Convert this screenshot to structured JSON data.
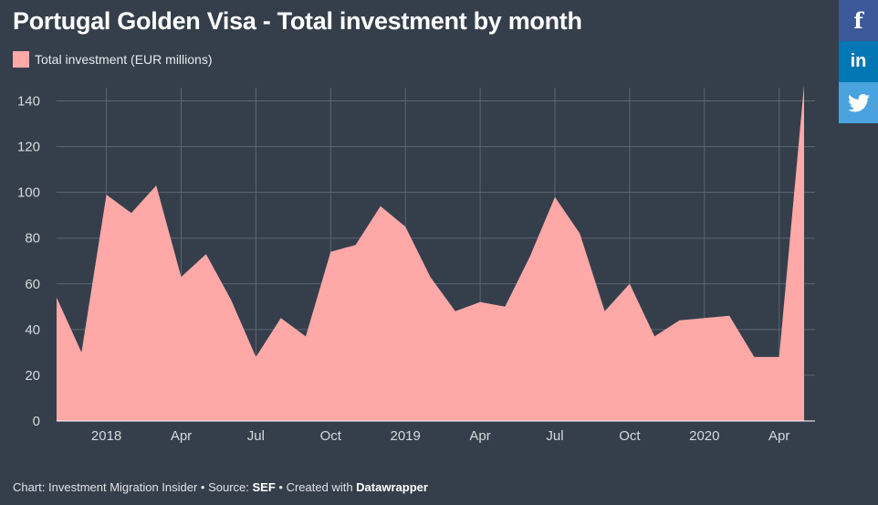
{
  "title": "Portugal Golden Visa - Total investment by month",
  "legend": {
    "label": "Total investment (EUR millions)",
    "color": "#ffa8a8"
  },
  "social": {
    "facebook": "f",
    "linkedin": "in"
  },
  "footer": {
    "prefix": "Chart: Investment Migration Insider • Source: ",
    "source": "SEF",
    "middle": " • Created with ",
    "tool": "Datawrapper"
  },
  "colors": {
    "background": "#343f4b",
    "area": "#ffa8a8",
    "grid": "#5b6672",
    "text": "#d5dade"
  },
  "chart_data": {
    "type": "area",
    "x": [
      "2017-11",
      "2017-12",
      "2018-01",
      "2018-02",
      "2018-03",
      "2018-04",
      "2018-05",
      "2018-06",
      "2018-07",
      "2018-08",
      "2018-09",
      "2018-10",
      "2018-11",
      "2018-12",
      "2019-01",
      "2019-02",
      "2019-03",
      "2019-04",
      "2019-05",
      "2019-06",
      "2019-07",
      "2019-08",
      "2019-09",
      "2019-10",
      "2019-11",
      "2019-12",
      "2020-01",
      "2020-02",
      "2020-03",
      "2020-04",
      "2020-05"
    ],
    "values": [
      54,
      30,
      99,
      91,
      103,
      63,
      73,
      53,
      28,
      45,
      37,
      74,
      77,
      94,
      85,
      63,
      48,
      52,
      50,
      72,
      98,
      82,
      48,
      60,
      37,
      44,
      45,
      46,
      28,
      28,
      147
    ],
    "ylim": [
      0,
      145
    ],
    "yticks": [
      0,
      20,
      40,
      60,
      80,
      100,
      120,
      140
    ],
    "xticks": [
      {
        "month": "2018-01",
        "label": "2018"
      },
      {
        "month": "2018-04",
        "label": "Apr"
      },
      {
        "month": "2018-07",
        "label": "Jul"
      },
      {
        "month": "2018-10",
        "label": "Oct"
      },
      {
        "month": "2019-01",
        "label": "2019"
      },
      {
        "month": "2019-04",
        "label": "Apr"
      },
      {
        "month": "2019-07",
        "label": "Jul"
      },
      {
        "month": "2019-10",
        "label": "Oct"
      },
      {
        "month": "2020-01",
        "label": "2020"
      },
      {
        "month": "2020-04",
        "label": "Apr"
      }
    ],
    "grid": true,
    "legend_position": "top-left",
    "xlabel": "",
    "ylabel": ""
  }
}
